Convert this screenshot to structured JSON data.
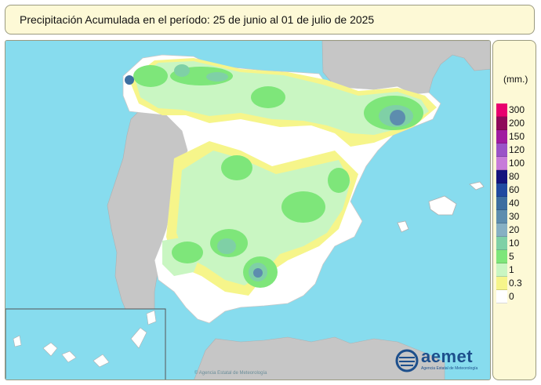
{
  "header": {
    "title": "Precipitación Acumulada en el período: 25  de junio  al 01  de julio de  2025"
  },
  "legend": {
    "unit": "(mm.)",
    "classes": [
      {
        "label": "300",
        "color": "#e8006e"
      },
      {
        "label": "200",
        "color": "#8e0a59"
      },
      {
        "label": "150",
        "color": "#a01ca0"
      },
      {
        "label": "120",
        "color": "#9b53c7"
      },
      {
        "label": "100",
        "color": "#c77bd9"
      },
      {
        "label": "80",
        "color": "#14137d"
      },
      {
        "label": "60",
        "color": "#214aa0"
      },
      {
        "label": "40",
        "color": "#3d6ea0"
      },
      {
        "label": "30",
        "color": "#5d8dae"
      },
      {
        "label": "20",
        "color": "#86b0c3"
      },
      {
        "label": "10",
        "color": "#7fd0a6"
      },
      {
        "label": "5",
        "color": "#7ee67a"
      },
      {
        "label": "1",
        "color": "#c9f6c2"
      },
      {
        "label": "0.3",
        "color": "#f6f58a"
      },
      {
        "label": "0",
        "color": "#ffffff"
      }
    ]
  },
  "map": {
    "sea_color": "#87dcee",
    "other_land_color": "#c6c6c6",
    "watermark": "© Agencia Estatal de Meteorología"
  },
  "logo": {
    "name": "aemet",
    "subtitle": "Agencia Estatal de Meteorología"
  }
}
